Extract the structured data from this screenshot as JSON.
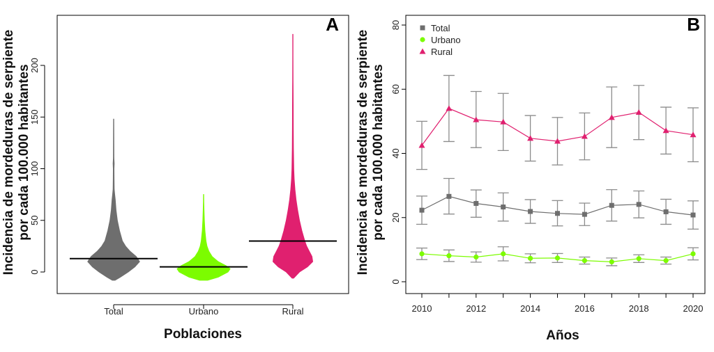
{
  "colors": {
    "total": "#6e6e6e",
    "urbano": "#7cfc00",
    "rural": "#e0206f",
    "error_bar": "#8c8c8c",
    "median": "#000000"
  },
  "chart_data": [
    {
      "panel": "A",
      "type": "violin",
      "ylabel_line1": "Incidencia de mordeduras de serpiente",
      "ylabel_line2": "por cada 100.000 habitantes",
      "xlabel": "Poblaciones",
      "ylim": [
        -8,
        235
      ],
      "yticks": [
        0,
        50,
        100,
        150,
        200
      ],
      "categories": [
        "Total",
        "Urbano",
        "Rural"
      ],
      "series": [
        {
          "key": "total",
          "median": 13,
          "profile": [
            [
              -8,
              0.05
            ],
            [
              -5,
              0.25
            ],
            [
              0,
              0.55
            ],
            [
              5,
              0.8
            ],
            [
              10,
              0.98
            ],
            [
              15,
              0.85
            ],
            [
              20,
              0.62
            ],
            [
              25,
              0.45
            ],
            [
              30,
              0.33
            ],
            [
              40,
              0.22
            ],
            [
              50,
              0.14
            ],
            [
              60,
              0.09
            ],
            [
              70,
              0.06
            ],
            [
              75,
              0.04
            ],
            [
              80,
              0.02
            ],
            [
              90,
              0.015
            ],
            [
              100,
              0.012
            ],
            [
              105,
              0.02
            ],
            [
              110,
              0.01
            ],
            [
              130,
              0.008
            ],
            [
              148,
              0.005
            ]
          ]
        },
        {
          "key": "urbano",
          "median": 5,
          "profile": [
            [
              -8,
              0.15
            ],
            [
              -5,
              0.55
            ],
            [
              0,
              0.92
            ],
            [
              3,
              1.0
            ],
            [
              6,
              0.85
            ],
            [
              10,
              0.55
            ],
            [
              15,
              0.32
            ],
            [
              20,
              0.2
            ],
            [
              25,
              0.13
            ],
            [
              30,
              0.09
            ],
            [
              40,
              0.05
            ],
            [
              50,
              0.03
            ],
            [
              60,
              0.015
            ],
            [
              68,
              0.008
            ],
            [
              75,
              0.005
            ]
          ]
        },
        {
          "key": "rural",
          "median": 30,
          "profile": [
            [
              -6,
              0.03
            ],
            [
              0,
              0.25
            ],
            [
              5,
              0.55
            ],
            [
              10,
              0.75
            ],
            [
              15,
              0.72
            ],
            [
              20,
              0.62
            ],
            [
              25,
              0.52
            ],
            [
              30,
              0.45
            ],
            [
              40,
              0.34
            ],
            [
              50,
              0.25
            ],
            [
              60,
              0.18
            ],
            [
              70,
              0.12
            ],
            [
              80,
              0.08
            ],
            [
              90,
              0.05
            ],
            [
              100,
              0.035
            ],
            [
              120,
              0.02
            ],
            [
              140,
              0.015
            ],
            [
              160,
              0.012
            ],
            [
              175,
              0.01
            ],
            [
              185,
              0.008
            ],
            [
              210,
              0.005
            ],
            [
              230,
              0.004
            ]
          ]
        }
      ]
    },
    {
      "panel": "B",
      "type": "line",
      "ylabel_line1": "Incidencia de mordeduras de serpiente",
      "ylabel_line2": "por cada 100.000 habitantes",
      "xlabel": "Años",
      "xlim": [
        2009.75,
        2020.4
      ],
      "ylim": [
        -3,
        82
      ],
      "xticks": [
        2010,
        2012,
        2014,
        2016,
        2018,
        2020
      ],
      "yticks": [
        0,
        20,
        40,
        60,
        80
      ],
      "x": [
        2010,
        2011,
        2012,
        2013,
        2014,
        2015,
        2016,
        2017,
        2018,
        2019,
        2020
      ],
      "legend_position": "top-left",
      "series": [
        {
          "name": "Total",
          "key": "total",
          "marker": "square",
          "values": [
            22.3,
            26.6,
            24.4,
            23.3,
            21.9,
            21.3,
            21.0,
            23.8,
            24.1,
            21.8,
            20.8
          ],
          "low": [
            17.9,
            21.1,
            20.1,
            18.9,
            18.2,
            17.4,
            17.5,
            18.9,
            19.9,
            17.9,
            16.4
          ],
          "high": [
            26.7,
            32.2,
            28.6,
            27.7,
            25.6,
            25.3,
            24.5,
            28.7,
            28.3,
            25.7,
            25.2
          ]
        },
        {
          "name": "Urbano",
          "key": "urbano",
          "marker": "circle",
          "values": [
            8.7,
            8.1,
            7.7,
            8.7,
            7.3,
            7.4,
            6.6,
            6.2,
            7.2,
            6.6,
            8.7
          ],
          "low": [
            6.9,
            6.3,
            6.1,
            6.5,
            5.9,
            6.0,
            5.5,
            5.0,
            6.0,
            5.5,
            6.8
          ],
          "high": [
            10.5,
            9.9,
            9.3,
            10.9,
            8.7,
            8.8,
            7.7,
            7.4,
            8.4,
            7.7,
            10.6
          ]
        },
        {
          "name": "Rural",
          "key": "rural",
          "marker": "triangle",
          "values": [
            42.5,
            54.0,
            50.5,
            49.8,
            44.7,
            43.8,
            45.3,
            51.2,
            52.8,
            47.1,
            45.8
          ],
          "low": [
            35.0,
            43.7,
            41.8,
            40.9,
            37.6,
            36.4,
            38.0,
            41.8,
            44.3,
            39.8,
            37.4
          ],
          "high": [
            50.0,
            64.3,
            59.3,
            58.7,
            51.8,
            51.2,
            52.6,
            60.7,
            61.2,
            54.4,
            54.2
          ]
        }
      ]
    }
  ]
}
